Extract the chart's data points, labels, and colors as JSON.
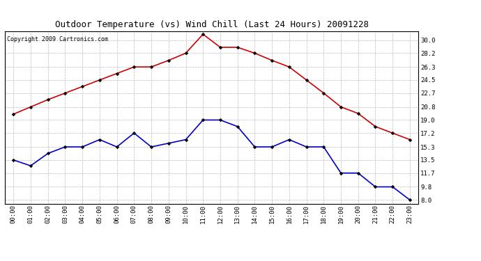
{
  "title": "Outdoor Temperature (vs) Wind Chill (Last 24 Hours) 20091228",
  "copyright": "Copyright 2009 Cartronics.com",
  "x_labels": [
    "00:00",
    "01:00",
    "02:00",
    "03:00",
    "04:00",
    "05:00",
    "06:00",
    "07:00",
    "08:00",
    "09:00",
    "10:00",
    "11:00",
    "12:00",
    "13:00",
    "14:00",
    "15:00",
    "16:00",
    "17:00",
    "18:00",
    "19:00",
    "20:00",
    "21:00",
    "22:00",
    "23:00"
  ],
  "red_data": [
    19.8,
    20.8,
    21.8,
    22.7,
    23.6,
    24.5,
    25.4,
    26.3,
    26.3,
    27.2,
    28.2,
    30.8,
    29.0,
    29.0,
    28.2,
    27.2,
    26.3,
    24.5,
    22.7,
    20.8,
    19.9,
    18.1,
    17.2,
    16.3
  ],
  "blue_data": [
    13.5,
    12.7,
    14.4,
    15.3,
    15.3,
    16.3,
    15.3,
    17.2,
    15.3,
    15.8,
    16.3,
    19.0,
    19.0,
    18.1,
    15.3,
    15.3,
    16.3,
    15.3,
    15.3,
    11.7,
    11.7,
    9.8,
    9.8,
    8.0
  ],
  "y_ticks": [
    8.0,
    9.8,
    11.7,
    13.5,
    15.3,
    17.2,
    19.0,
    20.8,
    22.7,
    24.5,
    26.3,
    28.2,
    30.0
  ],
  "y_min": 7.5,
  "y_max": 31.2,
  "red_color": "#cc0000",
  "blue_color": "#0000cc",
  "bg_color": "#ffffff",
  "grid_color": "#bbbbbb",
  "title_fontsize": 9,
  "copyright_fontsize": 6,
  "tick_fontsize": 6.5,
  "ytick_fontsize": 6.5
}
